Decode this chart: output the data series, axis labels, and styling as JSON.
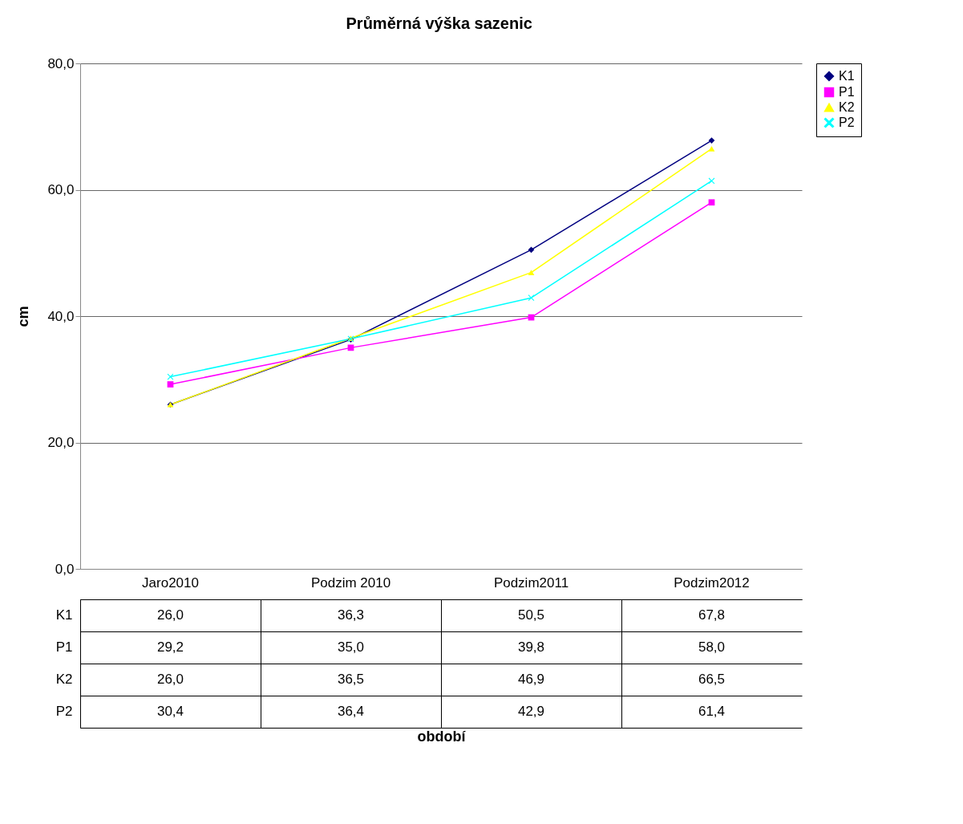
{
  "chart_data": {
    "type": "line",
    "title": "Průměrná výška sazenic",
    "annotations": [
      "období"
    ],
    "ylabel": "cm",
    "categories": [
      "Jaro2010",
      "Podzim 2010",
      "Podzim2011",
      "Podzim2012"
    ],
    "series": [
      {
        "name": "K1",
        "color": "#000080",
        "marker": "diamond",
        "values": [
          26.0,
          36.3,
          50.5,
          67.8
        ],
        "value_labels": [
          "26,0",
          "36,3",
          "50,5",
          "67,8"
        ]
      },
      {
        "name": "P1",
        "color": "#ff00ff",
        "marker": "square",
        "values": [
          29.2,
          35.0,
          39.8,
          58.0
        ],
        "value_labels": [
          "29,2",
          "35,0",
          "39,8",
          "58,0"
        ]
      },
      {
        "name": "K2",
        "color": "#ffff00",
        "marker": "triangle",
        "values": [
          26.0,
          36.5,
          46.9,
          66.5
        ],
        "value_labels": [
          "26,0",
          "36,5",
          "46,9",
          "66,5"
        ]
      },
      {
        "name": "P2",
        "color": "#00ffff",
        "marker": "cross",
        "values": [
          30.4,
          36.4,
          42.9,
          61.4
        ],
        "value_labels": [
          "30,4",
          "36,4",
          "42,9",
          "61,4"
        ]
      }
    ],
    "ylim": [
      0,
      80
    ],
    "yticks": [
      {
        "value": 0,
        "label": "0,0"
      },
      {
        "value": 20,
        "label": "20,0"
      },
      {
        "value": 40,
        "label": "40,0"
      },
      {
        "value": 60,
        "label": "60,0"
      },
      {
        "value": 80,
        "label": "80,0"
      }
    ],
    "grid": "y",
    "legend": "right",
    "line_style": "solid"
  }
}
